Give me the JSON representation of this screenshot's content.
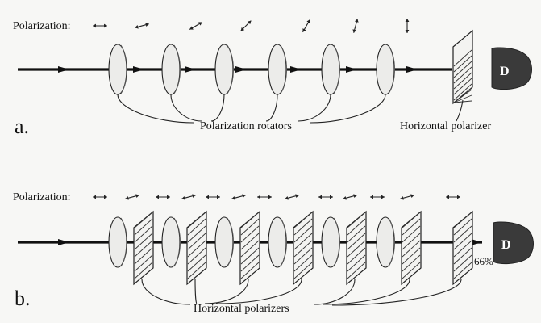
{
  "panel_a": {
    "label": "a.",
    "polarization_label": "Polarization:",
    "rotators_caption": "Polarization rotators",
    "polarizer_caption": "Horizontal polarizer",
    "detector_label": "D",
    "polarization_angles_deg": [
      0,
      15,
      30,
      45,
      60,
      75,
      90
    ]
  },
  "panel_b": {
    "label": "b.",
    "polarization_label": "Polarization:",
    "polarizers_caption": "Horizontal polarizers",
    "detector_label": "D",
    "transmission": "66%",
    "polarization_angles_deg": [
      0,
      15,
      0,
      15,
      0,
      15,
      0,
      15,
      0,
      15,
      0,
      15,
      0
    ]
  }
}
